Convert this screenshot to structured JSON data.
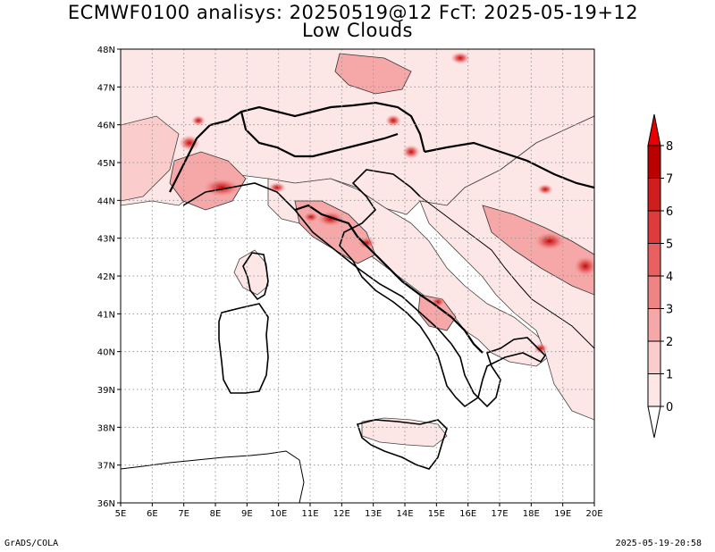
{
  "title": {
    "line1": "ECMWF0100 analisys: 20250519@12 FcT: 2025-05-19+12",
    "line2": "Low Clouds"
  },
  "footer": {
    "left": "GrADS/COLA",
    "right": "2025-05-19-20:58"
  },
  "map": {
    "lon_range": [
      5,
      20
    ],
    "lat_range": [
      36,
      48
    ],
    "lon_ticks": [
      "5E",
      "6E",
      "7E",
      "8E",
      "9E",
      "10E",
      "11E",
      "12E",
      "13E",
      "14E",
      "15E",
      "16E",
      "17E",
      "18E",
      "19E",
      "20E"
    ],
    "lat_ticks": [
      "36N",
      "37N",
      "38N",
      "39N",
      "40N",
      "41N",
      "42N",
      "43N",
      "44N",
      "45N",
      "46N",
      "47N",
      "48N"
    ],
    "grid": "dotted"
  },
  "colorbar": {
    "levels": [
      "0",
      "1",
      "2",
      "3",
      "4",
      "5",
      "6",
      "7",
      "8"
    ],
    "colors": [
      "#fde6e6",
      "#fbcccc",
      "#f6a8a8",
      "#ef8484",
      "#e86060",
      "#de3c3c",
      "#d01e1e",
      "#bb0000"
    ]
  }
}
